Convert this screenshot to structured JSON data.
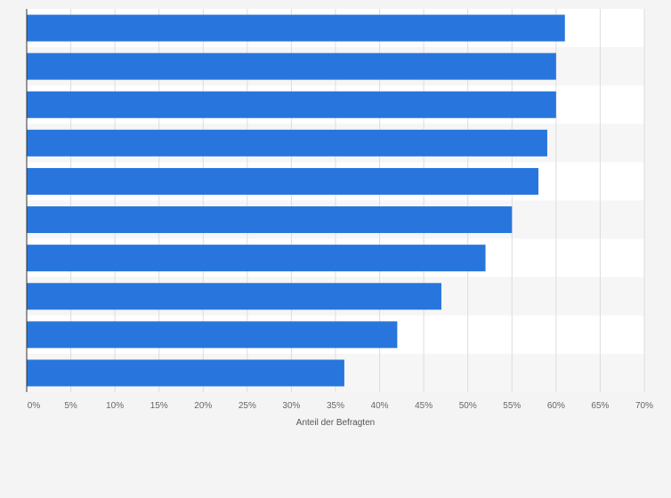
{
  "chart_data": {
    "type": "bar",
    "orientation": "horizontal",
    "categories": [
      "",
      "",
      "",
      "",
      "",
      "",
      "",
      "",
      "",
      ""
    ],
    "values": [
      61,
      60,
      60,
      59,
      58,
      55,
      52,
      47,
      42,
      36
    ],
    "value_unit": "%",
    "title": "",
    "xlabel": "Anteil der Befragten",
    "ylabel": "",
    "xlim": [
      0,
      70
    ],
    "x_ticks": [
      0,
      5,
      10,
      15,
      20,
      25,
      30,
      35,
      40,
      45,
      50,
      55,
      60,
      65,
      70
    ],
    "x_tick_labels": [
      "0%",
      "5%",
      "10%",
      "15%",
      "20%",
      "25%",
      "30%",
      "35%",
      "40%",
      "45%",
      "50%",
      "55%",
      "60%",
      "65%",
      "70%"
    ],
    "grid": true,
    "legend": "none",
    "colors": {
      "bar": "#2876dd",
      "plot_background": "#ffffff",
      "band_background": "#f6f6f6",
      "grid": "#dddddd",
      "axis": "#333333",
      "page_background": "#f4f4f4"
    }
  }
}
